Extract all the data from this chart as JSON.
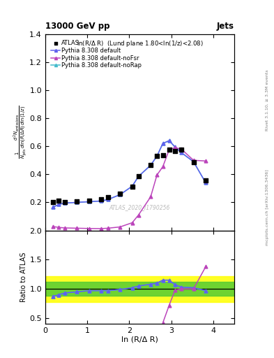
{
  "title_top": "13000 GeV pp",
  "title_right": "Jets",
  "annotation": "ln(R/Δ R)  (Lund plane 1.80<ln(1/z)<2.08)",
  "watermark": "ATLAS_2020_I1790256",
  "right_label_top": "Rivet 3.1.10, ≥ 3.3M events",
  "right_label_bottom": "mcplots.cern.ch [arXiv:1306.3436]",
  "ylabel_ratio": "Ratio to ATLAS",
  "xlabel": "ln (R/Δ R)",
  "ylim_main": [
    0.0,
    1.4
  ],
  "ylim_ratio": [
    0.4,
    2.0
  ],
  "yticks_main": [
    0.2,
    0.4,
    0.6,
    0.8,
    1.0,
    1.2,
    1.4
  ],
  "yticks_ratio": [
    0.5,
    1.0,
    1.5,
    2.0
  ],
  "xlim": [
    0.0,
    4.5
  ],
  "atlas_x": [
    0.18,
    0.32,
    0.46,
    0.75,
    1.04,
    1.33,
    1.49,
    1.78,
    2.07,
    2.22,
    2.51,
    2.66,
    2.8,
    2.95,
    3.09,
    3.24,
    3.53,
    3.82
  ],
  "atlas_y": [
    0.2,
    0.21,
    0.2,
    0.205,
    0.21,
    0.22,
    0.235,
    0.26,
    0.31,
    0.385,
    0.465,
    0.53,
    0.535,
    0.575,
    0.565,
    0.575,
    0.485,
    0.355
  ],
  "default_x": [
    0.18,
    0.32,
    0.46,
    0.75,
    1.04,
    1.33,
    1.49,
    1.78,
    2.07,
    2.22,
    2.51,
    2.66,
    2.8,
    2.95,
    3.09,
    3.24,
    3.53,
    3.82,
    4.11,
    4.26
  ],
  "default_y": [
    0.165,
    0.185,
    0.195,
    0.2,
    0.205,
    0.21,
    0.22,
    0.255,
    0.315,
    0.385,
    0.465,
    0.53,
    0.62,
    0.64,
    0.595,
    0.555,
    0.49,
    0.34,
    0.0,
    0.0
  ],
  "noFsr_x": [
    0.18,
    0.32,
    0.46,
    0.75,
    1.04,
    1.33,
    1.49,
    1.78,
    2.07,
    2.22,
    2.51,
    2.66,
    2.8,
    2.95,
    3.09,
    3.24,
    3.53,
    3.82,
    4.11,
    4.26
  ],
  "noFsr_y": [
    0.028,
    0.022,
    0.018,
    0.016,
    0.014,
    0.013,
    0.016,
    0.025,
    0.055,
    0.11,
    0.24,
    0.395,
    0.455,
    0.575,
    0.59,
    0.58,
    0.5,
    0.495,
    0.0,
    0.0
  ],
  "noRap_x": [
    0.18,
    0.32,
    0.46,
    0.75,
    1.04,
    1.33,
    1.49,
    1.78,
    2.07,
    2.22,
    2.51,
    2.66,
    2.8,
    2.95,
    3.09,
    3.24,
    3.53,
    3.82,
    4.11,
    4.26
  ],
  "noRap_y": [
    0.165,
    0.185,
    0.195,
    0.2,
    0.205,
    0.21,
    0.22,
    0.255,
    0.315,
    0.385,
    0.465,
    0.53,
    0.62,
    0.64,
    0.595,
    0.555,
    0.49,
    0.34,
    0.0,
    0.0
  ],
  "ratio_default_x": [
    0.18,
    0.32,
    0.46,
    0.75,
    1.04,
    1.33,
    1.49,
    1.78,
    2.07,
    2.22,
    2.51,
    2.66,
    2.8,
    2.95,
    3.09,
    3.24,
    3.53,
    3.82
  ],
  "ratio_default_y": [
    0.87,
    0.9,
    0.93,
    0.95,
    0.97,
    0.97,
    0.97,
    0.99,
    1.02,
    1.05,
    1.08,
    1.1,
    1.15,
    1.15,
    1.07,
    1.03,
    1.02,
    0.97
  ],
  "ratio_noFsr_x": [
    2.8,
    2.95,
    3.09,
    3.24,
    3.53,
    3.82
  ],
  "ratio_noFsr_y": [
    0.42,
    0.72,
    0.98,
    1.0,
    1.0,
    1.38
  ],
  "ratio_noRap_x": [
    0.18,
    0.32,
    0.46,
    0.75,
    1.04,
    1.33,
    1.49,
    1.78,
    2.07,
    2.22,
    2.51,
    2.66,
    2.8,
    2.95,
    3.09,
    3.24,
    3.53,
    3.82
  ],
  "ratio_noRap_y": [
    0.87,
    0.9,
    0.93,
    0.95,
    0.97,
    0.97,
    0.97,
    0.99,
    1.02,
    1.05,
    1.08,
    1.1,
    1.15,
    1.15,
    1.07,
    1.03,
    1.02,
    0.97
  ],
  "color_default": "#6060ee",
  "color_noFsr": "#bb44bb",
  "color_noRap": "#44bbcc",
  "color_atlas": "black",
  "band_yellow_lo": 0.78,
  "band_yellow_hi": 1.22,
  "band_green_lo": 0.88,
  "band_green_hi": 1.12
}
